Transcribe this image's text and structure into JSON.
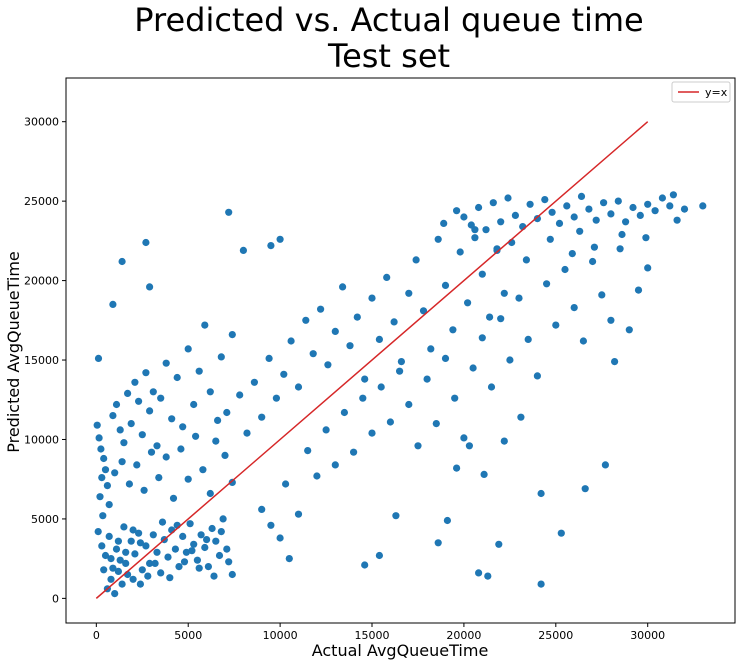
{
  "chart_data": {
    "type": "scatter",
    "title": [
      "Predicted vs. Actual queue time",
      "Test set"
    ],
    "xlabel": "Actual AvgQueueTime",
    "ylabel": "Predicted AvgQueueTime",
    "xlim": [
      -1650,
      34750
    ],
    "ylim": [
      -1550,
      32750
    ],
    "xticks": [
      0,
      5000,
      10000,
      15000,
      20000,
      25000,
      30000
    ],
    "yticks": [
      0,
      5000,
      10000,
      15000,
      20000,
      25000,
      30000
    ],
    "grid": false,
    "legend_position": "top-right",
    "series": [
      {
        "label": "",
        "color": "#1f77b4",
        "points": [
          [
            120,
            15100
          ],
          [
            900,
            18500
          ],
          [
            1400,
            21200
          ],
          [
            2700,
            22400
          ],
          [
            2900,
            19600
          ],
          [
            7200,
            24300
          ],
          [
            8000,
            21900
          ],
          [
            9500,
            22200
          ],
          [
            10000,
            22600
          ],
          [
            50,
            10900
          ],
          [
            150,
            10100
          ],
          [
            250,
            9400
          ],
          [
            400,
            8800
          ],
          [
            500,
            8100
          ],
          [
            300,
            7600
          ],
          [
            600,
            7100
          ],
          [
            200,
            6400
          ],
          [
            700,
            5900
          ],
          [
            350,
            5200
          ],
          [
            900,
            11500
          ],
          [
            1100,
            12200
          ],
          [
            1300,
            10600
          ],
          [
            1500,
            9800
          ],
          [
            1700,
            12900
          ],
          [
            1900,
            11000
          ],
          [
            2100,
            13600
          ],
          [
            2300,
            12400
          ],
          [
            2500,
            10300
          ],
          [
            2700,
            14200
          ],
          [
            2900,
            11800
          ],
          [
            3100,
            13000
          ],
          [
            3300,
            9600
          ],
          [
            3500,
            12600
          ],
          [
            3800,
            14800
          ],
          [
            4100,
            11300
          ],
          [
            4400,
            13900
          ],
          [
            4700,
            10800
          ],
          [
            5000,
            15700
          ],
          [
            5300,
            12200
          ],
          [
            5600,
            14300
          ],
          [
            5900,
            17200
          ],
          [
            6200,
            13000
          ],
          [
            6500,
            9900
          ],
          [
            6800,
            15200
          ],
          [
            7100,
            11700
          ],
          [
            7400,
            16600
          ],
          [
            1000,
            7900
          ],
          [
            1400,
            8600
          ],
          [
            1800,
            7200
          ],
          [
            2200,
            8400
          ],
          [
            2600,
            6800
          ],
          [
            3000,
            9200
          ],
          [
            3400,
            7600
          ],
          [
            3800,
            8900
          ],
          [
            4200,
            6300
          ],
          [
            4600,
            9400
          ],
          [
            5000,
            7500
          ],
          [
            5400,
            10200
          ],
          [
            5800,
            8100
          ],
          [
            6200,
            6600
          ],
          [
            6600,
            11200
          ],
          [
            7000,
            9000
          ],
          [
            7400,
            7300
          ],
          [
            7800,
            12800
          ],
          [
            8200,
            10400
          ],
          [
            8600,
            13600
          ],
          [
            9000,
            11400
          ],
          [
            9400,
            15100
          ],
          [
            9800,
            12600
          ],
          [
            10200,
            14100
          ],
          [
            10600,
            16200
          ],
          [
            11000,
            13300
          ],
          [
            11400,
            17500
          ],
          [
            11800,
            15400
          ],
          [
            12200,
            18200
          ],
          [
            12600,
            14700
          ],
          [
            13000,
            16800
          ],
          [
            13400,
            19600
          ],
          [
            13800,
            15900
          ],
          [
            14200,
            17700
          ],
          [
            14600,
            13800
          ],
          [
            15000,
            18900
          ],
          [
            15400,
            16300
          ],
          [
            15800,
            20200
          ],
          [
            16200,
            17400
          ],
          [
            16600,
            14900
          ],
          [
            17000,
            19200
          ],
          [
            17400,
            21300
          ],
          [
            17800,
            18100
          ],
          [
            18200,
            15700
          ],
          [
            18600,
            22600
          ],
          [
            19000,
            19700
          ],
          [
            19400,
            16900
          ],
          [
            19800,
            21800
          ],
          [
            20200,
            18600
          ],
          [
            20600,
            23200
          ],
          [
            21000,
            20400
          ],
          [
            21400,
            17700
          ],
          [
            21800,
            22000
          ],
          [
            22200,
            19200
          ],
          [
            9000,
            5600
          ],
          [
            9500,
            4600
          ],
          [
            10000,
            3800
          ],
          [
            10500,
            2500
          ],
          [
            11000,
            5300
          ],
          [
            10300,
            7200
          ],
          [
            11500,
            9300
          ],
          [
            12000,
            7700
          ],
          [
            12500,
            10600
          ],
          [
            13000,
            8400
          ],
          [
            13500,
            11700
          ],
          [
            14000,
            9200
          ],
          [
            14500,
            12600
          ],
          [
            15000,
            10400
          ],
          [
            15500,
            13300
          ],
          [
            16000,
            11100
          ],
          [
            16500,
            14300
          ],
          [
            17000,
            12200
          ],
          [
            17500,
            9600
          ],
          [
            18000,
            13800
          ],
          [
            18500,
            11000
          ],
          [
            19000,
            15100
          ],
          [
            19500,
            12600
          ],
          [
            20000,
            10100
          ],
          [
            20500,
            14500
          ],
          [
            21000,
            16400
          ],
          [
            21500,
            13300
          ],
          [
            22000,
            17600
          ],
          [
            22500,
            15000
          ],
          [
            23000,
            18900
          ],
          [
            23500,
            16300
          ],
          [
            24000,
            14000
          ],
          [
            24500,
            19800
          ],
          [
            25000,
            17200
          ],
          [
            25500,
            20700
          ],
          [
            26000,
            18300
          ],
          [
            26500,
            16200
          ],
          [
            27000,
            21200
          ],
          [
            27500,
            19100
          ],
          [
            28000,
            17500
          ],
          [
            28500,
            22000
          ],
          [
            29000,
            16900
          ],
          [
            29500,
            19400
          ],
          [
            30000,
            20800
          ],
          [
            28200,
            14900
          ],
          [
            19600,
            8200
          ],
          [
            20300,
            9600
          ],
          [
            21100,
            7800
          ],
          [
            22200,
            9900
          ],
          [
            23100,
            11400
          ],
          [
            24200,
            6600
          ],
          [
            25300,
            4100
          ],
          [
            26600,
            6900
          ],
          [
            27700,
            8400
          ],
          [
            14600,
            2100
          ],
          [
            15400,
            2700
          ],
          [
            18600,
            3500
          ],
          [
            20800,
            1600
          ],
          [
            21300,
            1400
          ],
          [
            21900,
            3400
          ],
          [
            24200,
            900
          ],
          [
            19100,
            4900
          ],
          [
            16300,
            5200
          ],
          [
            20000,
            24000
          ],
          [
            20400,
            23500
          ],
          [
            20800,
            24600
          ],
          [
            21200,
            23200
          ],
          [
            21600,
            24900
          ],
          [
            22000,
            23700
          ],
          [
            22400,
            25200
          ],
          [
            22800,
            24100
          ],
          [
            23200,
            23400
          ],
          [
            23600,
            24800
          ],
          [
            24000,
            23900
          ],
          [
            24400,
            25100
          ],
          [
            24800,
            24300
          ],
          [
            25200,
            23600
          ],
          [
            25600,
            24700
          ],
          [
            26000,
            24000
          ],
          [
            26400,
            25300
          ],
          [
            26800,
            24500
          ],
          [
            27200,
            23800
          ],
          [
            27600,
            24900
          ],
          [
            28000,
            24200
          ],
          [
            28400,
            25000
          ],
          [
            28800,
            23700
          ],
          [
            29200,
            24600
          ],
          [
            29600,
            24100
          ],
          [
            30000,
            24800
          ],
          [
            30400,
            24400
          ],
          [
            30800,
            25200
          ],
          [
            31200,
            24700
          ],
          [
            31600,
            23800
          ],
          [
            32000,
            24500
          ],
          [
            33000,
            24700
          ],
          [
            31400,
            25400
          ],
          [
            29900,
            22700
          ],
          [
            27100,
            22100
          ],
          [
            25900,
            21700
          ],
          [
            23400,
            21300
          ],
          [
            22600,
            22400
          ],
          [
            21800,
            21900
          ],
          [
            24700,
            22600
          ],
          [
            26300,
            23100
          ],
          [
            28600,
            22900
          ],
          [
            20600,
            22700
          ],
          [
            19600,
            24400
          ],
          [
            18900,
            23600
          ],
          [
            100,
            4200
          ],
          [
            300,
            3300
          ],
          [
            500,
            2700
          ],
          [
            700,
            3900
          ],
          [
            900,
            1900
          ],
          [
            1100,
            3100
          ],
          [
            1300,
            2400
          ],
          [
            1500,
            4500
          ],
          [
            1700,
            1500
          ],
          [
            1900,
            3600
          ],
          [
            2100,
            2800
          ],
          [
            2300,
            4100
          ],
          [
            2500,
            1800
          ],
          [
            2700,
            3300
          ],
          [
            2900,
            2200
          ],
          [
            3100,
            4000
          ],
          [
            3300,
            2900
          ],
          [
            3500,
            1600
          ],
          [
            3700,
            3700
          ],
          [
            3900,
            2600
          ],
          [
            4100,
            4300
          ],
          [
            4300,
            3100
          ],
          [
            4500,
            2000
          ],
          [
            4700,
            3900
          ],
          [
            4900,
            2900
          ],
          [
            5100,
            4700
          ],
          [
            5300,
            3400
          ],
          [
            5500,
            2400
          ],
          [
            5700,
            4000
          ],
          [
            5900,
            3200
          ],
          [
            6100,
            2000
          ],
          [
            6300,
            4400
          ],
          [
            6500,
            3600
          ],
          [
            6700,
            2700
          ],
          [
            6900,
            5000
          ],
          [
            7100,
            3100
          ],
          [
            7400,
            1500
          ],
          [
            600,
            600
          ],
          [
            1000,
            300
          ],
          [
            1400,
            900
          ],
          [
            800,
            1200
          ],
          [
            1200,
            1700
          ],
          [
            1600,
            2200
          ],
          [
            2000,
            1200
          ],
          [
            2400,
            900
          ],
          [
            400,
            1800
          ],
          [
            800,
            2500
          ],
          [
            1200,
            3600
          ],
          [
            1600,
            2900
          ],
          [
            2000,
            4300
          ],
          [
            2400,
            3500
          ],
          [
            2800,
            1400
          ],
          [
            3200,
            2200
          ],
          [
            3600,
            4800
          ],
          [
            4000,
            1300
          ],
          [
            4400,
            4600
          ],
          [
            4800,
            2300
          ],
          [
            5200,
            3000
          ],
          [
            5600,
            1900
          ],
          [
            6000,
            3700
          ],
          [
            6400,
            1400
          ],
          [
            6800,
            4200
          ],
          [
            7200,
            2300
          ]
        ]
      }
    ],
    "reference_line": {
      "label": "y=x",
      "color": "#d62728",
      "from": [
        0,
        0
      ],
      "to": [
        30000,
        30000
      ]
    }
  }
}
